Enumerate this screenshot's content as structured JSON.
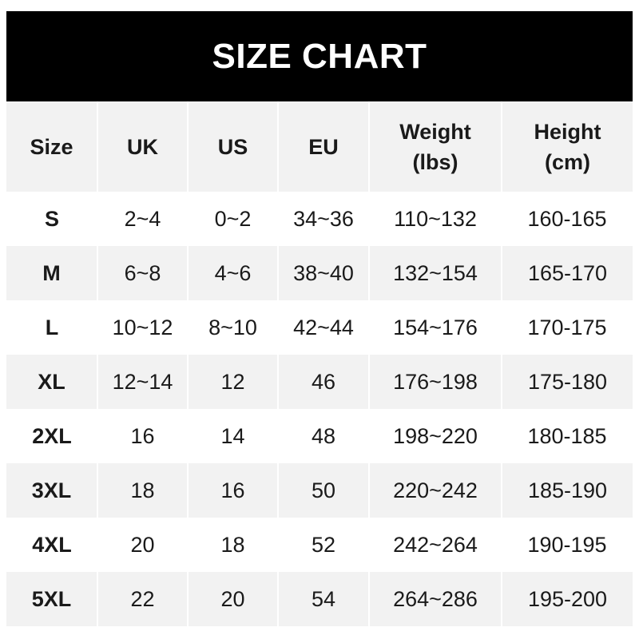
{
  "title": "SIZE CHART",
  "headers": [
    [
      "Size"
    ],
    [
      "UK"
    ],
    [
      "US"
    ],
    [
      "EU"
    ],
    [
      "Weight",
      "(lbs)"
    ],
    [
      "Height",
      "(cm)"
    ]
  ],
  "rows": [
    [
      "S",
      "2~4",
      "0~2",
      "34~36",
      "110~132",
      "160-165"
    ],
    [
      "M",
      "6~8",
      "4~6",
      "38~40",
      "132~154",
      "165-170"
    ],
    [
      "L",
      "10~12",
      "8~10",
      "42~44",
      "154~176",
      "170-175"
    ],
    [
      "XL",
      "12~14",
      "12",
      "46",
      "176~198",
      "175-180"
    ],
    [
      "2XL",
      "16",
      "14",
      "48",
      "198~220",
      "180-185"
    ],
    [
      "3XL",
      "18",
      "16",
      "50",
      "220~242",
      "185-190"
    ],
    [
      "4XL",
      "20",
      "18",
      "52",
      "242~264",
      "190-195"
    ],
    [
      "5XL",
      "22",
      "20",
      "54",
      "264~286",
      "195-200"
    ]
  ],
  "colors": {
    "header_bg": "#000000",
    "stripe": "#f2f2f2"
  }
}
